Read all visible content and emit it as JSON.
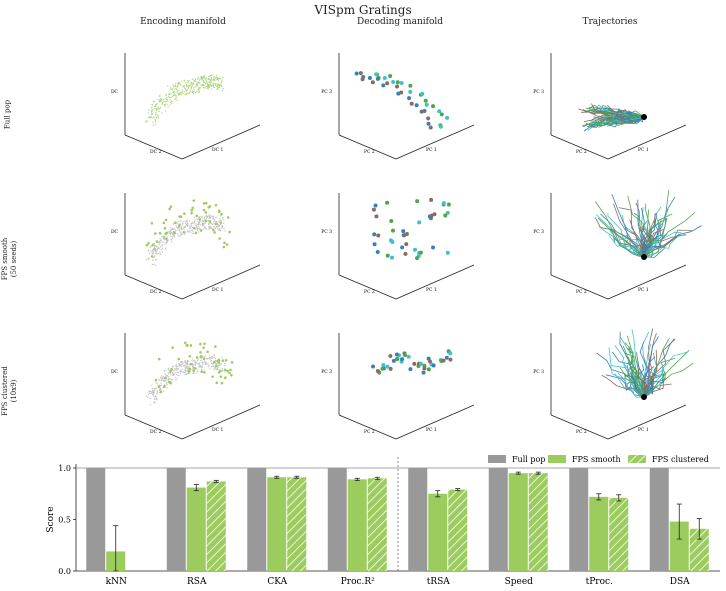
{
  "title": "VISpm Gratings",
  "columns": [
    "Encoding manifold",
    "Decoding manifold",
    "Trajectories"
  ],
  "rows": [
    {
      "label": "Full pop",
      "sublabel": ""
    },
    {
      "label": "FPS smooth",
      "sublabel": "(50 seeds)"
    },
    {
      "label": "FPS clustered",
      "sublabel": "(10x9)"
    }
  ],
  "axis_labels": {
    "encoding": {
      "z": "DC",
      "x": "DC 2",
      "y": "DC 1"
    },
    "decoding": {
      "z": "PC 3",
      "x": "PC 2",
      "y": "PC 1"
    },
    "trajectories": {
      "z": "PC 3",
      "x": "PC 2",
      "y": "PC 1"
    }
  },
  "colors": {
    "full_pop": "#999999",
    "fps": "#9ccb5e",
    "encoding_points": "#a8cf72",
    "encoding_gray": "#bbbbbb",
    "decoding": [
      "#3a7fb8",
      "#4aa84a",
      "#8c6b60",
      "#40c0d0"
    ],
    "trajectory": [
      "#40c0d0",
      "#4aa84a",
      "#8c6b60",
      "#3a7fb8"
    ]
  },
  "chart_data": {
    "type": "bar",
    "ylabel": "Score",
    "ylim": [
      0,
      1.0
    ],
    "yticks": [
      "0.0",
      "0.5",
      "1.0"
    ],
    "categories": [
      "kNN",
      "RSA",
      "CKA",
      "Proc.R²",
      "tRSA",
      "Speed",
      "tProc.",
      "DSA"
    ],
    "series": [
      {
        "name": "Full pop",
        "values": [
          1.0,
          1.0,
          1.0,
          1.0,
          1.0,
          1.0,
          1.0,
          1.0
        ],
        "errors": [
          0,
          0,
          0,
          0,
          0,
          0,
          0,
          0
        ]
      },
      {
        "name": "FPS smooth",
        "values": [
          0.19,
          0.81,
          0.91,
          0.89,
          0.75,
          0.95,
          0.72,
          0.48
        ],
        "errors": [
          0.25,
          0.03,
          0.01,
          0.01,
          0.03,
          0.01,
          0.03,
          0.17
        ]
      },
      {
        "name": "FPS clustered",
        "values": [
          0.0,
          0.87,
          0.91,
          0.9,
          0.79,
          0.95,
          0.71,
          0.41
        ],
        "errors": [
          0,
          0.01,
          0.01,
          0.01,
          0.01,
          0.01,
          0.03,
          0.1
        ]
      }
    ],
    "legend": "top-right",
    "reference_line": 1.0,
    "divider_after_category": 3
  }
}
